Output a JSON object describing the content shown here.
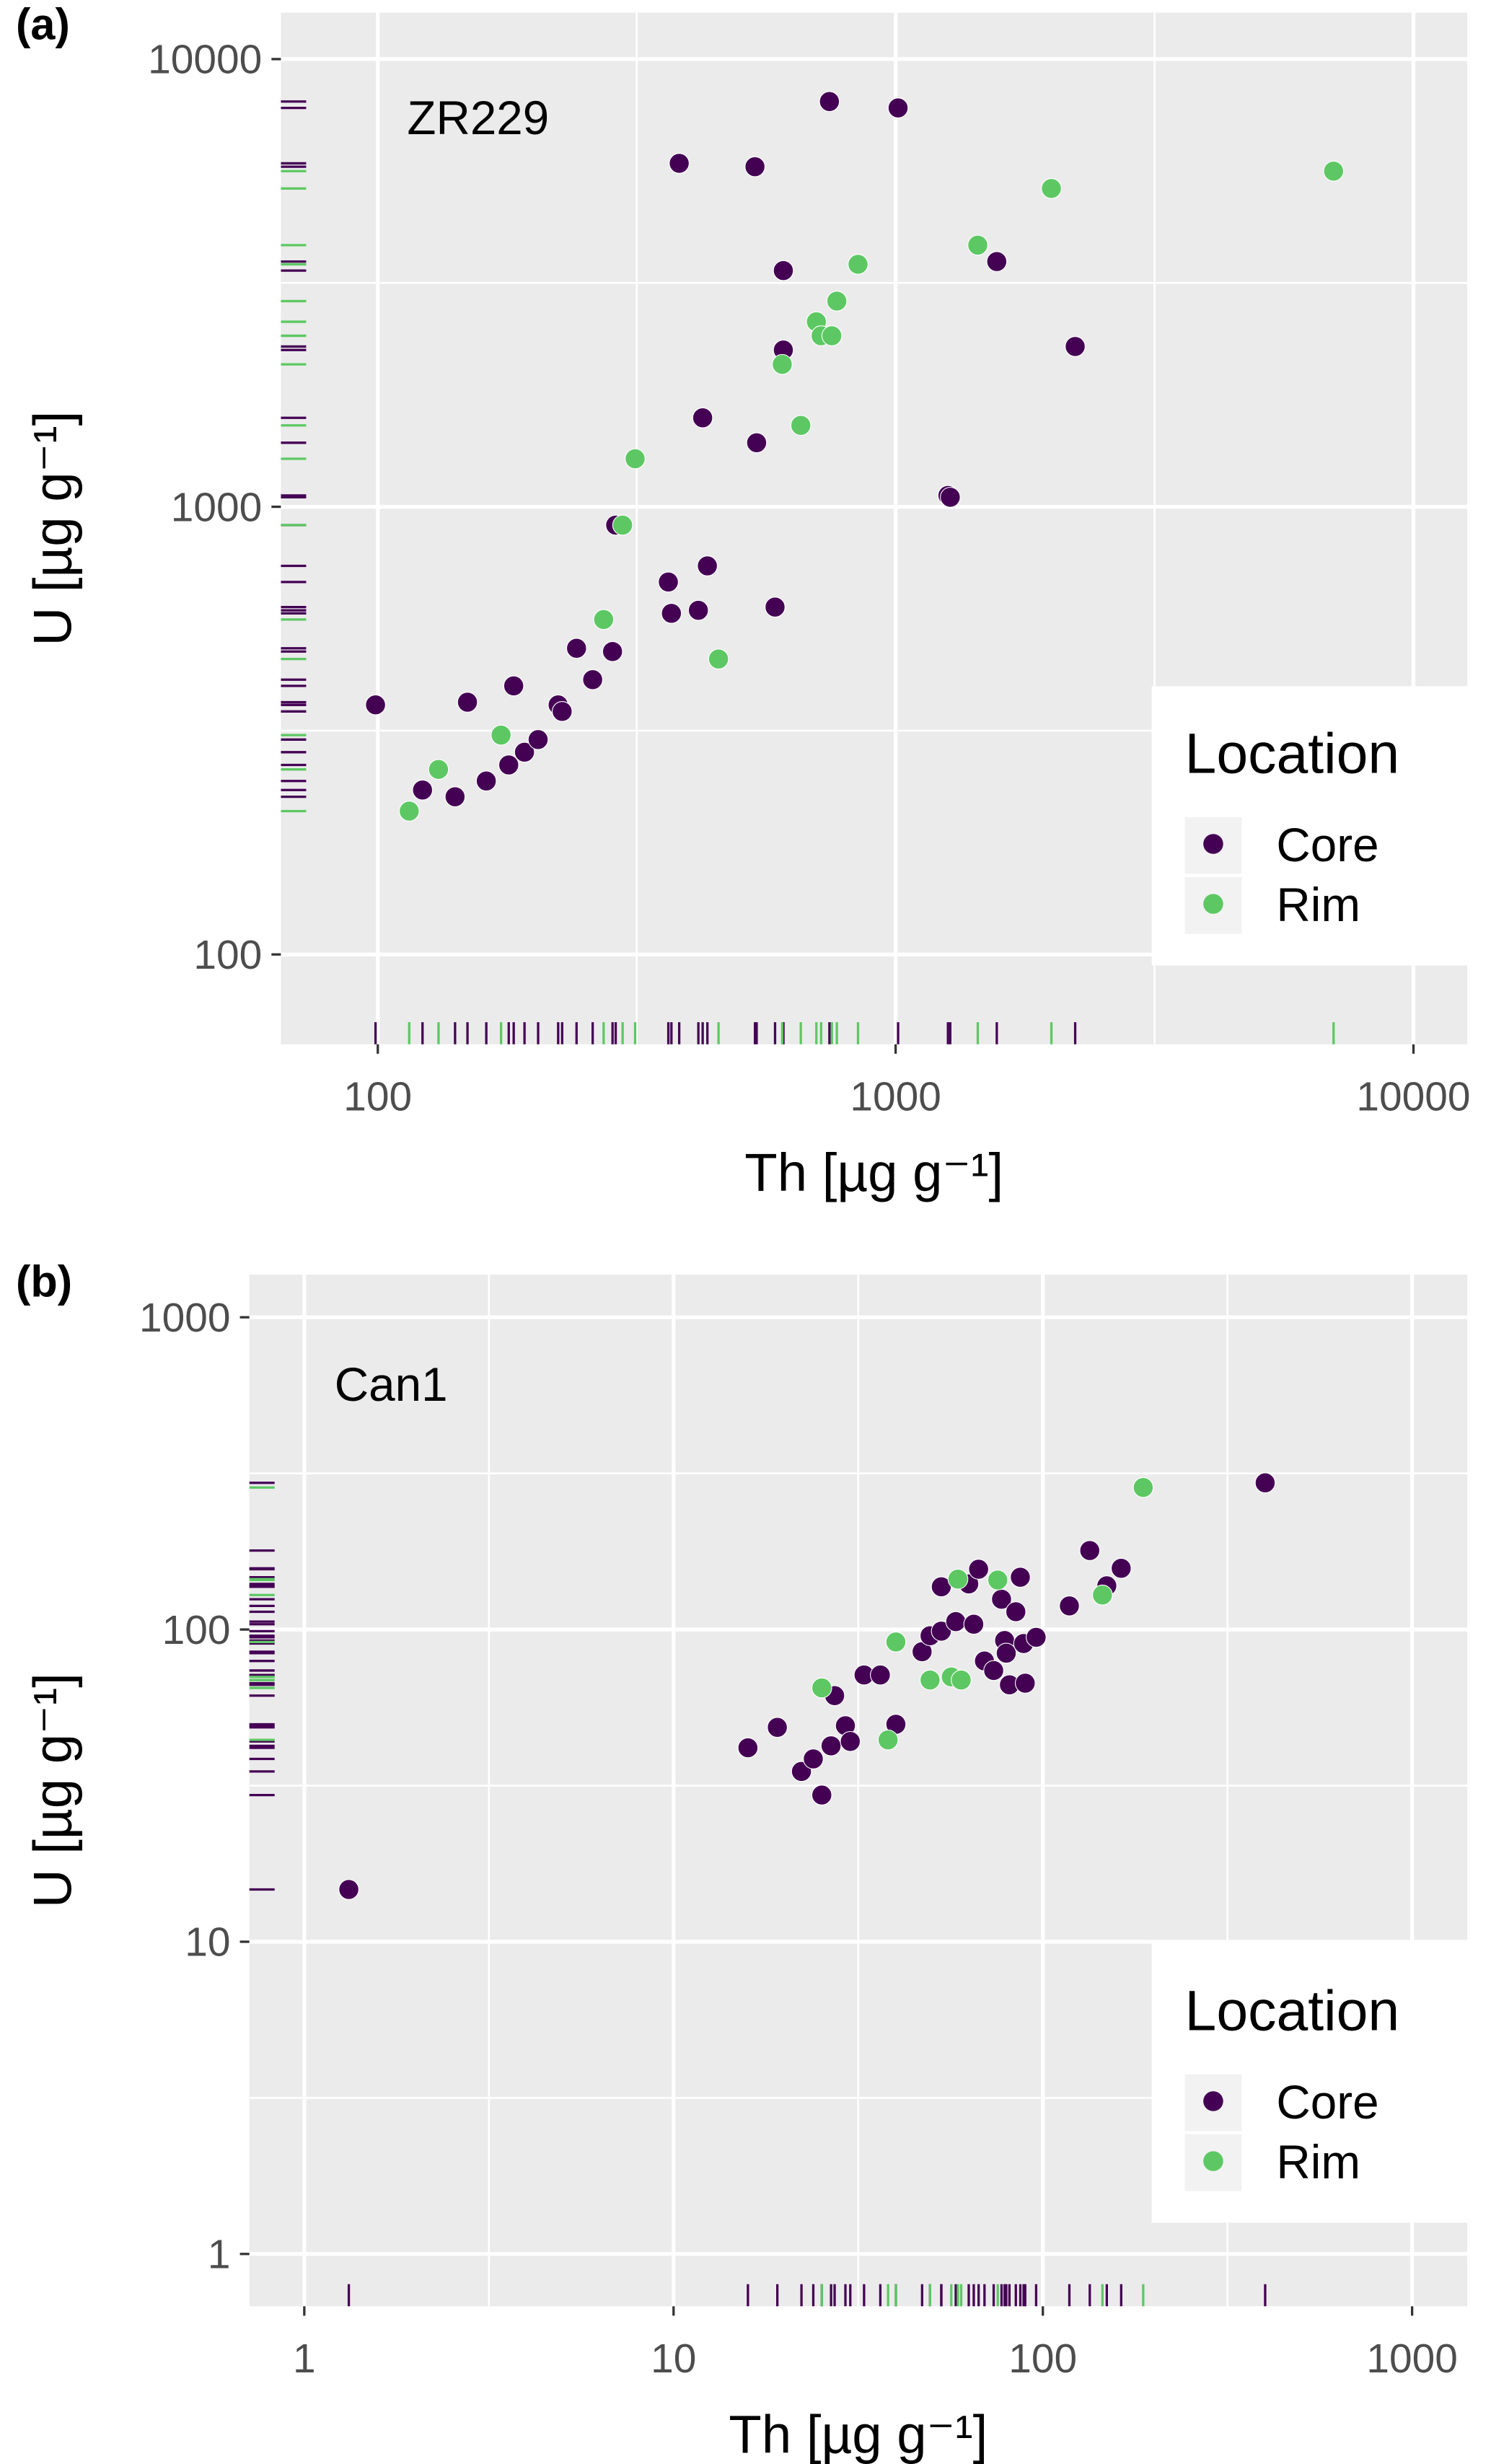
{
  "colors": {
    "Core": "#440154",
    "Rim": "#5DC863",
    "panel_bg": "#EBEBEB",
    "grid": "#FFFFFF"
  },
  "chart_data": [
    {
      "type": "scatter",
      "panel_label": "(a)",
      "annotation": "ZR229",
      "xlabel": "Th [µg g⁻¹]",
      "ylabel": "U [µg g⁻¹]",
      "xscale": "log10",
      "yscale": "log10",
      "xlim": [
        65,
        12700
      ],
      "ylim": [
        63,
        12700
      ],
      "xticks": [
        100,
        1000,
        10000
      ],
      "xtick_labels": [
        "100",
        "1000",
        "10000"
      ],
      "yticks": [
        100,
        1000,
        10000
      ],
      "ytick_labels": [
        "100",
        "1000",
        "10000"
      ],
      "grid": true,
      "rug": true,
      "legend": {
        "title": "Location",
        "placement": "bottom-right",
        "entries": [
          "Core",
          "Rim"
        ]
      },
      "series": [
        {
          "name": "Core",
          "x": [
            99,
            122,
            141,
            149,
            162,
            179,
            183,
            192,
            204,
            223,
            227,
            242,
            260,
            284,
            288,
            364,
            369,
            382,
            416,
            433,
            424,
            535,
            539,
            585,
            607,
            607,
            745,
            1011,
            1262,
            1275,
            1568,
            2222
          ],
          "y": [
            361,
            233,
            225,
            366,
            244,
            265,
            398,
            283,
            302,
            361,
            349,
            483,
            411,
            475,
            910,
            679,
            578,
            5850,
            587,
            738,
            1580,
            5750,
            1390,
            597,
            3370,
            2240,
            8040,
            7780,
            1060,
            1050,
            3530,
            2280
          ]
        },
        {
          "name": "Rim",
          "x": [
            115,
            131,
            173,
            273,
            297,
            314,
            455,
            604,
            656,
            703,
            718,
            753,
            770,
            846,
            1441,
            1999,
            7010
          ],
          "y": [
            209,
            259,
            309,
            560,
            910,
            1280,
            457,
            2080,
            1520,
            2590,
            2410,
            2410,
            2880,
            3480,
            3840,
            5140,
            5620
          ]
        }
      ]
    },
    {
      "type": "scatter",
      "panel_label": "(b)",
      "annotation": "Can1",
      "xlabel": "Th [µg g⁻¹]",
      "ylabel": "U [µg g⁻¹]",
      "xscale": "log10",
      "yscale": "log10",
      "xlim": [
        0.71,
        1410
      ],
      "ylim": [
        0.68,
        1370
      ],
      "xticks": [
        1,
        10,
        100,
        1000
      ],
      "xtick_labels": [
        "1",
        "10",
        "100",
        "1000"
      ],
      "yticks": [
        1,
        10,
        100,
        1000
      ],
      "ytick_labels": [
        "1",
        "10",
        "100",
        "1000"
      ],
      "grid": true,
      "rug": true,
      "legend": {
        "title": "Location",
        "placement": "bottom-right",
        "entries": [
          "Core",
          "Rim"
        ]
      },
      "series": [
        {
          "name": "Core",
          "x": [
            1.32,
            15.9,
            19.1,
            22.2,
            23.9,
            25.2,
            26.7,
            27.3,
            29.2,
            30.1,
            32.8,
            36.3,
            40.0,
            47.1,
            49.5,
            53.1,
            53.1,
            58.1,
            63.0,
            67.0,
            65.0,
            69.5,
            73.6,
            77.3,
            78.8,
            79.6,
            81.2,
            84.5,
            86.9,
            88.7,
            89.6,
            95.9,
            118,
            134,
            149,
            163,
            400
          ],
          "y": [
            14.7,
            41.8,
            48.6,
            35.1,
            38.5,
            29.5,
            42.4,
            61.4,
            49.2,
            43.8,
            71.5,
            71.5,
            49.7,
            84.9,
            95.5,
            137,
            98.8,
            106,
            140,
            156,
            104,
            79.3,
            73.9,
            125,
            92.2,
            84,
            66.5,
            114,
            147,
            90.2,
            67.3,
            94.4,
            119,
            179,
            138,
            157,
            295
          ]
        },
        {
          "name": "Rim",
          "x": [
            25.2,
            38.1,
            40.0,
            49.5,
            56.5,
            58.9,
            60.1,
            75.5,
            145,
            187
          ],
          "y": [
            65,
            44.3,
            91.2,
            68.9,
            70.5,
            145,
            68.9,
            144,
            129,
            285
          ]
        }
      ]
    }
  ]
}
